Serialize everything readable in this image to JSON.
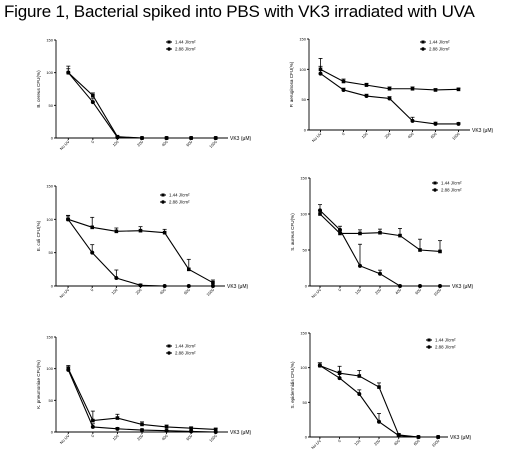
{
  "figure_title": "Figure 1, Bacterial spiked into PBS with VK3 irradiated with UVA",
  "chart_data": [
    {
      "type": "line",
      "ylabel": "B. cereus CFU(%)",
      "xlabel": "VK3 (μM)",
      "categories": [
        "No UV",
        "0",
        "100",
        "200",
        "400",
        "600",
        "1000"
      ],
      "yticks": [
        0,
        50,
        100,
        150
      ],
      "ylim": [
        0,
        150
      ],
      "legend_placement": "top-right",
      "series": [
        {
          "name": "1.44 J/cm²",
          "marker": "square",
          "values": [
            100,
            65,
            2,
            0,
            0,
            0,
            0
          ],
          "errors": [
            6,
            4,
            1,
            0,
            0,
            0,
            0
          ]
        },
        {
          "name": "2.88 J/cm²",
          "marker": "circle",
          "values": [
            100,
            55,
            1,
            0,
            0,
            0,
            0
          ],
          "errors": [
            10,
            6,
            1,
            0,
            0,
            0,
            0
          ]
        }
      ]
    },
    {
      "type": "line",
      "ylabel": "P. aeruginosa CFU(%)",
      "xlabel": "VK3 (μM)",
      "categories": [
        "No UV",
        "0",
        "100",
        "200",
        "400",
        "600",
        "1000"
      ],
      "yticks": [
        0,
        50,
        100,
        150
      ],
      "ylim": [
        0,
        150
      ],
      "legend_placement": "top-right",
      "series": [
        {
          "name": "1.44 J/cm²",
          "marker": "square",
          "values": [
            100,
            80,
            74,
            68,
            68,
            66,
            67
          ],
          "errors": [
            18,
            4,
            3,
            3,
            3,
            2,
            2
          ]
        },
        {
          "name": "2.88 J/cm²",
          "marker": "circle",
          "values": [
            93,
            66,
            56,
            52,
            15,
            10,
            10
          ],
          "errors": [
            12,
            3,
            3,
            3,
            6,
            3,
            2
          ]
        }
      ]
    },
    {
      "type": "line",
      "ylabel": "E. coli CFU(%)",
      "xlabel": "VK3 (μM)",
      "categories": [
        "No UV",
        "0",
        "100",
        "200",
        "400",
        "600",
        "1000"
      ],
      "yticks": [
        0,
        50,
        100,
        150
      ],
      "ylim": [
        0,
        150
      ],
      "legend_placement": "top-right",
      "series": [
        {
          "name": "1.44 J/cm²",
          "marker": "square",
          "values": [
            100,
            88,
            82,
            83,
            80,
            25,
            5
          ],
          "errors": [
            5,
            15,
            5,
            6,
            5,
            15,
            4
          ]
        },
        {
          "name": "2.88 J/cm²",
          "marker": "circle",
          "values": [
            100,
            50,
            12,
            1,
            0,
            0,
            0
          ],
          "errors": [
            6,
            12,
            12,
            2,
            0,
            0,
            0
          ]
        }
      ]
    },
    {
      "type": "line",
      "ylabel": "S. aureus CFU(%)",
      "xlabel": "VK3 (μM)",
      "categories": [
        "No UV",
        "0",
        "100",
        "200",
        "400",
        "600",
        "1000"
      ],
      "yticks": [
        0,
        50,
        100,
        150
      ],
      "ylim": [
        0,
        150
      ],
      "legend_placement": "top-right",
      "series": [
        {
          "name": "1.44 J/cm²",
          "marker": "square",
          "values": [
            100,
            73,
            73,
            74,
            70,
            50,
            48
          ],
          "errors": [
            5,
            5,
            5,
            5,
            10,
            15,
            15
          ]
        },
        {
          "name": "2.88 J/cm²",
          "marker": "circle",
          "values": [
            105,
            78,
            28,
            17,
            0,
            0,
            0
          ],
          "errors": [
            8,
            5,
            30,
            5,
            0,
            0,
            0
          ]
        }
      ]
    },
    {
      "type": "line",
      "ylabel": "K. pneumoniae CFU(%)",
      "xlabel": "VK3 (μM)",
      "categories": [
        "No UV",
        "0",
        "100",
        "200",
        "400",
        "600",
        "1000"
      ],
      "yticks": [
        0,
        50,
        100,
        150
      ],
      "ylim": [
        0,
        150
      ],
      "legend_placement": "top-right",
      "series": [
        {
          "name": "1.44 J/cm²",
          "marker": "square",
          "values": [
            100,
            18,
            22,
            12,
            8,
            6,
            4
          ],
          "errors": [
            5,
            15,
            6,
            4,
            3,
            2,
            2
          ]
        },
        {
          "name": "2.88 J/cm²",
          "marker": "circle",
          "values": [
            98,
            8,
            5,
            3,
            2,
            1,
            0
          ],
          "errors": [
            5,
            5,
            2,
            2,
            1,
            1,
            0
          ]
        }
      ]
    },
    {
      "type": "line",
      "ylabel": "S. epidermidis CFU(%)",
      "xlabel": "VK3 (μM)",
      "categories": [
        "No UV",
        "0",
        "100",
        "200",
        "400",
        "600",
        "1000"
      ],
      "yticks": [
        0,
        50,
        100,
        150
      ],
      "ylim": [
        0,
        150
      ],
      "legend_placement": "top-right",
      "series": [
        {
          "name": "1.44 J/cm²",
          "marker": "square",
          "values": [
            103,
            92,
            88,
            72,
            3,
            0,
            0
          ],
          "errors": [
            4,
            10,
            8,
            6,
            2,
            0,
            0
          ]
        },
        {
          "name": "2.88 J/cm²",
          "marker": "circle",
          "values": [
            103,
            85,
            62,
            22,
            2,
            0,
            0
          ],
          "errors": [
            4,
            10,
            6,
            12,
            2,
            0,
            0
          ]
        }
      ]
    }
  ]
}
